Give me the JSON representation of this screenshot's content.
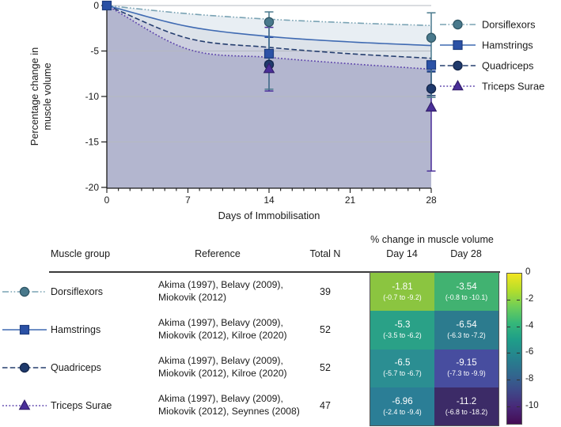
{
  "chart_data": {
    "type": "line",
    "title": "",
    "xlabel": "Days of Immobilisation",
    "ylabel_lines": [
      "Percentage change in",
      "muscle volume"
    ],
    "xlim": [
      0,
      28
    ],
    "ylim": [
      -20,
      0
    ],
    "xticks": [
      0,
      7,
      14,
      21,
      28
    ],
    "yticks": [
      0,
      -5,
      -10,
      -15,
      -20
    ],
    "grid_values": [
      0,
      -5,
      -10,
      -15
    ],
    "legend_position": "right",
    "series": [
      {
        "name": "Dorsiflexors",
        "marker": "circle",
        "line_color": "#7aa3b4",
        "marker_color": "#49798c",
        "marker_edge": "#2d5463",
        "dash": "8 2.5 1.6 2.5 1.6 2.5",
        "fill_below": "#e8eef3",
        "curve_points": [
          [
            0,
            0
          ],
          [
            7,
            -0.9
          ],
          [
            14,
            -1.5
          ],
          [
            21,
            -1.9
          ],
          [
            28,
            -2.2
          ]
        ],
        "points": [
          {
            "x": 14,
            "y": -1.81,
            "ci_high": -0.7,
            "ci_low": -9.2
          },
          {
            "x": 28,
            "y": -3.54,
            "ci_high": -0.8,
            "ci_low": -10.1
          }
        ]
      },
      {
        "name": "Hamstrings",
        "marker": "square",
        "line_color": "#3f6ab2",
        "marker_color": "#2b51a5",
        "marker_edge": "#1d3c7e",
        "dash": "",
        "fill_below": "#dde3ea",
        "curve_points": [
          [
            0,
            0
          ],
          [
            7,
            -2.3
          ],
          [
            14,
            -3.4
          ],
          [
            21,
            -4.0
          ],
          [
            28,
            -4.4
          ]
        ],
        "points": [
          {
            "x": 0,
            "y": 0
          },
          {
            "x": 14,
            "y": -5.3,
            "ci_high": -3.5,
            "ci_low": -6.2
          },
          {
            "x": 28,
            "y": -6.54,
            "ci_high": -6.3,
            "ci_low": -7.2
          }
        ]
      },
      {
        "name": "Quadriceps",
        "marker": "circle",
        "line_color": "#253e6f",
        "marker_color": "#1f3a6c",
        "marker_edge": "#132448",
        "dash": "6.5 3.2",
        "fill_below": "#cdd0df",
        "curve_points": [
          [
            0,
            0
          ],
          [
            7,
            -3.6
          ],
          [
            14,
            -4.6
          ],
          [
            21,
            -5.3
          ],
          [
            28,
            -5.8
          ]
        ],
        "points": [
          {
            "x": 14,
            "y": -6.5,
            "ci_high": -5.7,
            "ci_low": -6.7
          },
          {
            "x": 28,
            "y": -9.15,
            "ci_high": -7.3,
            "ci_low": -9.9
          }
        ]
      },
      {
        "name": "Triceps Surae",
        "marker": "triangle",
        "line_color": "#5a41ab",
        "marker_color": "#4a2f99",
        "marker_edge": "#331f6b",
        "dash": "1.8 2.4",
        "fill_below": "#b3b6cf",
        "curve_points": [
          [
            0,
            0
          ],
          [
            7,
            -4.8
          ],
          [
            14,
            -5.7
          ],
          [
            21,
            -6.4
          ],
          [
            28,
            -7.0
          ]
        ],
        "points": [
          {
            "x": 14,
            "y": -6.96,
            "ci_high": -2.4,
            "ci_low": -9.4
          },
          {
            "x": 28,
            "y": -11.2,
            "ci_high": -6.8,
            "ci_low": -18.2
          }
        ]
      }
    ]
  },
  "table": {
    "headers": {
      "muscle_group": "Muscle group",
      "reference": "Reference",
      "total_n": "Total N",
      "span": "% change in muscle volume",
      "day14": "Day 14",
      "day28": "Day 28"
    },
    "rows": [
      {
        "muscle": "Dorsiflexors",
        "reference": [
          "Akima (1997), Belavy (2009),",
          "Miokovik (2012)"
        ],
        "total_n": "39",
        "day14": {
          "value": "-1.81",
          "ci": "(-0.7 to -9.2)",
          "color": "#8bc540"
        },
        "day28": {
          "value": "-3.54",
          "ci": "(-0.8 to -10.1)",
          "color": "#41b271"
        }
      },
      {
        "muscle": "Hamstrings",
        "reference": [
          "Akima (1997), Belavy (2009),",
          "Miokovik (2012), Kilroe (2020)"
        ],
        "total_n": "52",
        "day14": {
          "value": "-5.3",
          "ci": "(-3.5 to -6.2)",
          "color": "#2aa187"
        },
        "day28": {
          "value": "-6.54",
          "ci": "(-6.3 to -7.2)",
          "color": "#2c7b8e"
        }
      },
      {
        "muscle": "Quadriceps",
        "reference": [
          "Akima (1997), Belavy (2009),",
          "Miokovik (2012), Kilroe (2020)"
        ],
        "total_n": "52",
        "day14": {
          "value": "-6.5",
          "ci": "(-5.7 to -6.7)",
          "color": "#2b8e92"
        },
        "day28": {
          "value": "-9.15",
          "ci": "(-7.3 to -9.9)",
          "color": "#474d9f"
        }
      },
      {
        "muscle": "Triceps Surae",
        "reference": [
          "Akima (1997), Belavy (2009),",
          "Miokovik (2012), Seynnes (2008)"
        ],
        "total_n": "47",
        "day14": {
          "value": "-6.96",
          "ci": "(-2.4 to -9.4)",
          "color": "#2b7e96"
        },
        "day28": {
          "value": "-11.2",
          "ci": "(-6.8 to -18.2)",
          "color": "#3c2b67"
        }
      }
    ],
    "colorbar": {
      "tick_labels": [
        "0",
        "-2",
        "-4",
        "-6",
        "-8",
        "-10"
      ],
      "tick_values": [
        0,
        -2,
        -4,
        -6,
        -8,
        -10
      ],
      "range_top": 0,
      "range_bottom": -11.3
    }
  }
}
